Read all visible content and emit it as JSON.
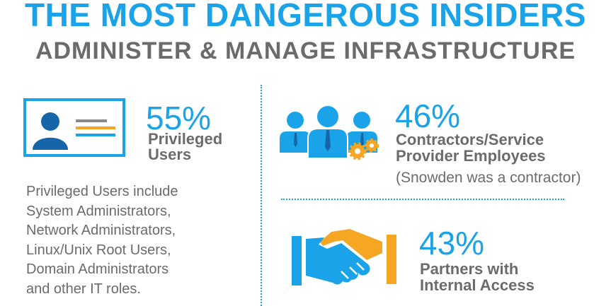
{
  "header": {
    "title": "THE MOST DANGEROUS INSIDERS",
    "subtitle": "ADMINISTER & MANAGE INFRASTRUCTURE"
  },
  "stats": {
    "privileged": {
      "percent": "55%",
      "label_line1": "Privileged",
      "label_line2": "Users",
      "icon": "id-card-icon"
    },
    "contractors": {
      "percent": "46%",
      "label_line1": "Contractors/Service",
      "label_line2": "Provider Employees",
      "note": "(Snowden was a contractor)",
      "icon": "team-gears-icon"
    },
    "partners": {
      "percent": "43%",
      "label_line1": "Partners with",
      "label_line2": "Internal Access",
      "icon": "handshake-icon"
    }
  },
  "description": {
    "lines": [
      "Privileged Users include",
      "System Administrators,",
      "Network Administrators,",
      "Linux/Unix Root Users,",
      "Domain Administrators",
      "and other IT roles."
    ]
  },
  "colors": {
    "accent_blue": "#1aa3e8",
    "dark_blue": "#1565a8",
    "gray": "#6b6b6b",
    "orange": "#f5a623"
  }
}
